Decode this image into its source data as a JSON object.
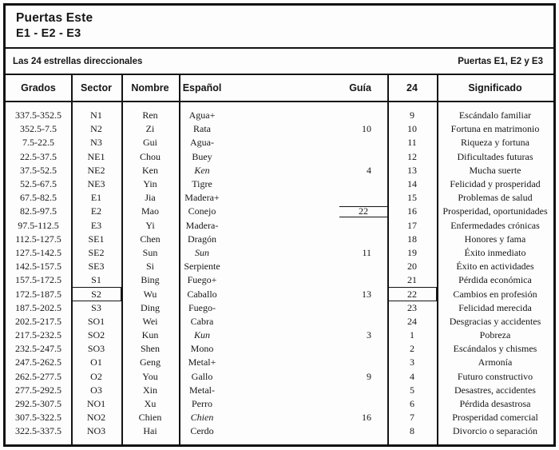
{
  "page": {
    "title_line1": "Puertas Este",
    "title_line2": "E1 - E2 - E3"
  },
  "subbar": {
    "left": "Las 24 estrellas direccionales",
    "right": "Puertas E1, E2 y E3"
  },
  "colors": {
    "ink": "#141414",
    "paper": "#fdfdfd"
  },
  "table": {
    "columns": {
      "grados": "Grados",
      "sector": "Sector",
      "nombre": "Nombre",
      "espanol": "Español",
      "guia": "Guía",
      "veinticuatro": "24",
      "significado": "Significado"
    },
    "rows": [
      {
        "grados": "337.5-352.5",
        "sector": "N1",
        "nombre": "Ren",
        "espanol": "Agua+",
        "guia": "",
        "num24": "9",
        "significado": "Escándalo familiar"
      },
      {
        "grados": "352.5-7.5",
        "sector": "N2",
        "nombre": "Zi",
        "espanol": "Rata",
        "guia": "10",
        "num24": "10",
        "significado": "Fortuna en matrimonio"
      },
      {
        "grados": "7.5-22.5",
        "sector": "N3",
        "nombre": "Gui",
        "espanol": "Agua-",
        "guia": "",
        "num24": "11",
        "significado": "Riqueza y fortuna"
      },
      {
        "grados": "22.5-37.5",
        "sector": "NE1",
        "nombre": "Chou",
        "espanol": "Buey",
        "guia": "",
        "num24": "12",
        "significado": "Dificultades futuras"
      },
      {
        "grados": "37.5-52.5",
        "sector": "NE2",
        "nombre": "Ken",
        "espanol": "Ken",
        "espanol_italic": true,
        "guia": "4",
        "num24": "13",
        "significado": "Mucha suerte"
      },
      {
        "grados": "52.5-67.5",
        "sector": "NE3",
        "nombre": "Yin",
        "espanol": "Tigre",
        "guia": "",
        "num24": "14",
        "significado": "Felicidad y prosperidad"
      },
      {
        "grados": "67.5-82.5",
        "sector": "E1",
        "nombre": "Jia",
        "espanol": "Madera+",
        "guia": "",
        "num24": "15",
        "significado": "Problemas de salud"
      },
      {
        "grados": "82.5-97.5",
        "sector": "E2",
        "nombre": "Mao",
        "espanol": "Conejo",
        "guia": "22",
        "guia_box": true,
        "num24": "16",
        "significado": "Prosperidad, oportunidades"
      },
      {
        "grados": "97.5-112.5",
        "sector": "E3",
        "nombre": "Yi",
        "espanol": "Madera-",
        "guia": "",
        "num24": "17",
        "significado": "Enfermedades crónicas"
      },
      {
        "grados": "112.5-127.5",
        "sector": "SE1",
        "nombre": "Chen",
        "espanol": "Dragón",
        "guia": "",
        "num24": "18",
        "significado": "Honores y fama"
      },
      {
        "grados": "127.5-142.5",
        "sector": "SE2",
        "nombre": "Sun",
        "espanol": "Sun",
        "espanol_italic": true,
        "guia": "11",
        "num24": "19",
        "significado": "Éxito inmediato"
      },
      {
        "grados": "142.5-157.5",
        "sector": "SE3",
        "nombre": "Si",
        "espanol": "Serpiente",
        "guia": "",
        "num24": "20",
        "significado": "Éxito en actividades"
      },
      {
        "grados": "157.5-172.5",
        "sector": "S1",
        "nombre": "Bing",
        "espanol": "Fuego+",
        "guia": "",
        "num24": "21",
        "significado": "Pérdida económica"
      },
      {
        "grados": "172.5-187.5",
        "sector": "S2",
        "sector_box": true,
        "nombre": "Wu",
        "espanol": "Caballo",
        "guia": "13",
        "num24": "22",
        "num24_box": true,
        "significado": "Cambios en profesión"
      },
      {
        "grados": "187.5-202.5",
        "sector": "S3",
        "nombre": "Ding",
        "espanol": "Fuego-",
        "guia": "",
        "num24": "23",
        "significado": "Felicidad merecida"
      },
      {
        "grados": "202.5-217.5",
        "sector": "SO1",
        "nombre": "Wei",
        "espanol": "Cabra",
        "guia": "",
        "num24": "24",
        "significado": "Desgracias y accidentes"
      },
      {
        "grados": "217.5-232.5",
        "sector": "SO2",
        "nombre": "Kun",
        "espanol": "Kun",
        "espanol_italic": true,
        "guia": "3",
        "num24": "1",
        "significado": "Pobreza"
      },
      {
        "grados": "232.5-247.5",
        "sector": "SO3",
        "nombre": "Shen",
        "espanol": "Mono",
        "guia": "",
        "num24": "2",
        "significado": "Escándalos y chismes"
      },
      {
        "grados": "247.5-262.5",
        "sector": "O1",
        "nombre": "Geng",
        "espanol": "Metal+",
        "guia": "",
        "num24": "3",
        "significado": "Armonía"
      },
      {
        "grados": "262.5-277.5",
        "sector": "O2",
        "nombre": "You",
        "espanol": "Gallo",
        "guia": "9",
        "num24": "4",
        "significado": "Futuro constructivo"
      },
      {
        "grados": "277.5-292.5",
        "sector": "O3",
        "nombre": "Xin",
        "espanol": "Metal-",
        "guia": "",
        "num24": "5",
        "significado": "Desastres, accidentes"
      },
      {
        "grados": "292.5-307.5",
        "sector": "NO1",
        "nombre": "Xu",
        "espanol": "Perro",
        "guia": "",
        "num24": "6",
        "significado": "Pérdida desastrosa"
      },
      {
        "grados": "307.5-322.5",
        "sector": "NO2",
        "nombre": "Chien",
        "espanol": "Chien",
        "espanol_italic": true,
        "guia": "16",
        "num24": "7",
        "significado": "Prosperidad comercial"
      },
      {
        "grados": "322.5-337.5",
        "sector": "NO3",
        "nombre": "Hai",
        "espanol": "Cerdo",
        "guia": "",
        "num24": "8",
        "significado": "Divorcio o separación"
      }
    ]
  }
}
